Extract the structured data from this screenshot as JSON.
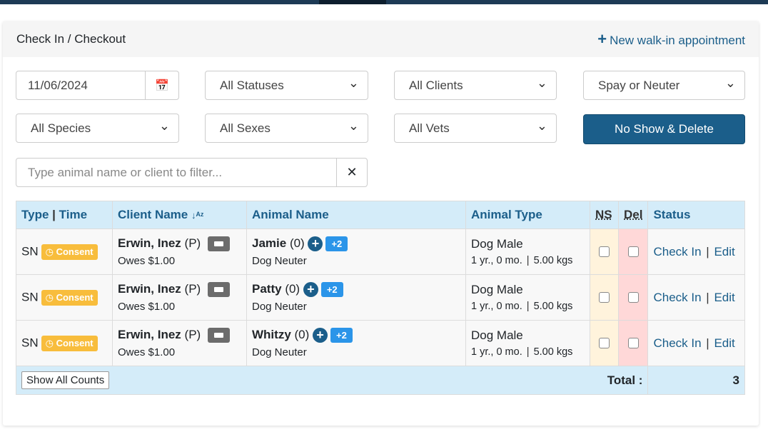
{
  "header": {
    "title": "Check In / Checkout",
    "new_walkin": "New walk-in appointment"
  },
  "filters": {
    "date": "11/06/2024",
    "status": "All Statuses",
    "clients": "All Clients",
    "type": "Spay or Neuter",
    "species": "All Species",
    "sexes": "All Sexes",
    "vets": "All Vets",
    "no_show_delete": "No Show & Delete",
    "search_placeholder": "Type animal name or client to filter...",
    "clear": "✕"
  },
  "table": {
    "headers": {
      "type": "Type",
      "time": "Time",
      "client": "Client Name",
      "sort_icon": "↓ᴬᶻ",
      "animal": "Animal Name",
      "animal_type": "Animal Type",
      "ns": "NS",
      "del": "Del",
      "status": "Status"
    },
    "rows": [
      {
        "type": "SN",
        "badge": "Consent",
        "client": "Erwin, Inez",
        "client_tag": "(P)",
        "owes": "Owes $1.00",
        "animal": "Jamie",
        "animal_count": "(0)",
        "extra": "+2",
        "procedure": "Dog Neuter",
        "animal_type": "Dog Male",
        "age": "1 yr., 0 mo.",
        "weight": "5.00 kgs",
        "check_in": "Check In",
        "edit": "Edit"
      },
      {
        "type": "SN",
        "badge": "Consent",
        "client": "Erwin, Inez",
        "client_tag": "(P)",
        "owes": "Owes $1.00",
        "animal": "Patty",
        "animal_count": "(0)",
        "extra": "+2",
        "procedure": "Dog Neuter",
        "animal_type": "Dog Male",
        "age": "1 yr., 0 mo.",
        "weight": "5.00 kgs",
        "check_in": "Check In",
        "edit": "Edit"
      },
      {
        "type": "SN",
        "badge": "Consent",
        "client": "Erwin, Inez",
        "client_tag": "(P)",
        "owes": "Owes $1.00",
        "animal": "Whitzy",
        "animal_count": "(0)",
        "extra": "+2",
        "procedure": "Dog Neuter",
        "animal_type": "Dog Male",
        "age": "1 yr., 0 mo.",
        "weight": "5.00 kgs",
        "check_in": "Check In",
        "edit": "Edit"
      }
    ],
    "footer": {
      "show_all": "Show All Counts",
      "total_label": "Total :",
      "total": "3"
    }
  },
  "colors": {
    "primary": "#1b5e8a",
    "consent": "#f8bd3c",
    "header_bg": "#d4ecf9"
  }
}
